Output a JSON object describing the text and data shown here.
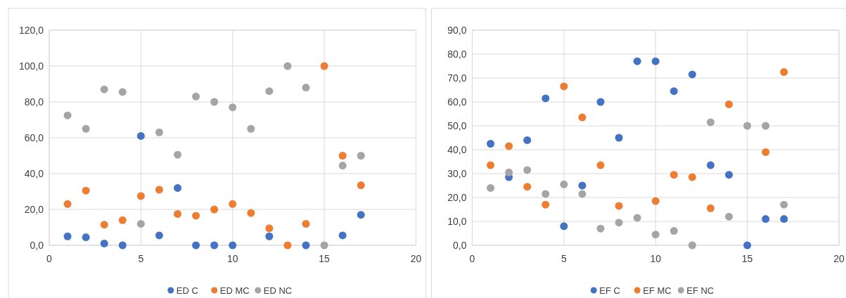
{
  "chart_data": [
    {
      "type": "scatter",
      "x": [
        1,
        2,
        3,
        4,
        5,
        6,
        7,
        8,
        9,
        10,
        11,
        12,
        13,
        14,
        15,
        16,
        17
      ],
      "xlim": [
        0,
        20
      ],
      "xticks": [
        0,
        5,
        10,
        15,
        20
      ],
      "ylim": [
        0,
        120
      ],
      "yticks": [
        {
          "value": 0,
          "label": "0,0"
        },
        {
          "value": 20,
          "label": "20,0"
        },
        {
          "value": 40,
          "label": "40,0"
        },
        {
          "value": 60,
          "label": "60,0"
        },
        {
          "value": 80,
          "label": "80,0"
        },
        {
          "value": 100,
          "label": "100,0"
        },
        {
          "value": 120,
          "label": "120,0"
        }
      ],
      "grid": true,
      "legend": "bottom",
      "marker": "circle",
      "series": [
        {
          "name": "ED C",
          "color": "#4472c4",
          "values": [
            5,
            4.5,
            1,
            0,
            61,
            5.5,
            32,
            0,
            0,
            0,
            null,
            5,
            null,
            0,
            null,
            5.5,
            17
          ]
        },
        {
          "name": "ED MC",
          "color": "#ed7d31",
          "values": [
            23,
            30.5,
            11.5,
            14,
            27.5,
            31,
            17.5,
            16.5,
            20,
            23,
            18,
            9.5,
            0,
            12,
            100,
            50,
            33.5
          ]
        },
        {
          "name": "ED NC",
          "color": "#a5a5a5",
          "values": [
            72.5,
            65,
            87,
            85.5,
            12,
            63,
            50.5,
            83,
            80,
            77,
            65,
            86,
            100,
            88,
            0,
            44.5,
            50
          ]
        }
      ]
    },
    {
      "type": "scatter",
      "x": [
        1,
        2,
        3,
        4,
        5,
        6,
        7,
        8,
        9,
        10,
        11,
        12,
        13,
        14,
        15,
        16,
        17
      ],
      "xlim": [
        0,
        20
      ],
      "xticks": [
        0,
        5,
        10,
        15,
        20
      ],
      "ylim": [
        0,
        90
      ],
      "yticks": [
        {
          "value": 0,
          "label": "0,0"
        },
        {
          "value": 10,
          "label": "10,0"
        },
        {
          "value": 20,
          "label": "20,0"
        },
        {
          "value": 30,
          "label": "30,0"
        },
        {
          "value": 40,
          "label": "40,0"
        },
        {
          "value": 50,
          "label": "50,0"
        },
        {
          "value": 60,
          "label": "60,0"
        },
        {
          "value": 70,
          "label": "70,0"
        },
        {
          "value": 80,
          "label": "80,0"
        },
        {
          "value": 90,
          "label": "90,0"
        }
      ],
      "grid": true,
      "legend": "bottom",
      "marker": "circle",
      "series": [
        {
          "name": "EF C",
          "color": "#4472c4",
          "values": [
            42.5,
            28.5,
            44,
            61.5,
            8,
            25,
            60,
            45,
            77,
            77,
            64.5,
            71.5,
            33.5,
            29.5,
            0,
            11,
            11
          ]
        },
        {
          "name": "EF MC",
          "color": "#ed7d31",
          "values": [
            33.5,
            41.5,
            24.5,
            17,
            66.5,
            53.5,
            33.5,
            16.5,
            null,
            18.5,
            29.5,
            28.5,
            15.5,
            59,
            null,
            39,
            72.5
          ]
        },
        {
          "name": "EF NC",
          "color": "#a5a5a5",
          "values": [
            24,
            30.5,
            31.5,
            21.5,
            25.5,
            21.5,
            7,
            9.5,
            11.5,
            4.5,
            6,
            0,
            51.5,
            12,
            50,
            50,
            17
          ]
        }
      ]
    }
  ]
}
